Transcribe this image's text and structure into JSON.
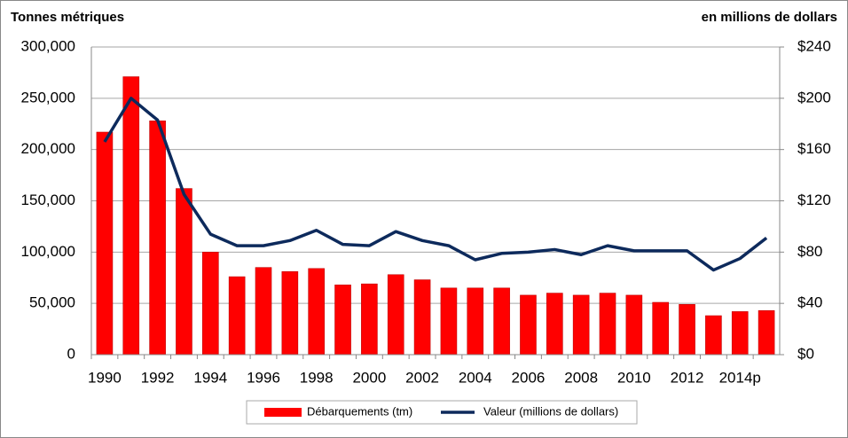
{
  "chart_data": {
    "type": "bar",
    "y_label": "Tonnes métriques",
    "y2_label": "en millions de dollars",
    "categories": [
      "1990",
      null,
      "1992",
      null,
      "1994",
      null,
      "1996",
      null,
      "1998",
      null,
      "2000",
      null,
      "2002",
      null,
      "2004",
      null,
      "2006",
      null,
      "2008",
      null,
      "2010",
      null,
      "2012",
      null,
      "2014p",
      null
    ],
    "series": [
      {
        "name": "Débarquements (tm)",
        "type": "bar",
        "color": "#ff0000",
        "values": [
          217000,
          271000,
          228000,
          162000,
          100000,
          76000,
          85000,
          81000,
          84000,
          68000,
          69000,
          78000,
          73000,
          65000,
          65000,
          65000,
          58000,
          60000,
          58000,
          60000,
          58000,
          51000,
          49000,
          38000,
          42000,
          43000
        ]
      },
      {
        "name": "Valeur (millions de dollars)",
        "type": "line",
        "axis": "y2",
        "color": "#0d2a5c",
        "values": [
          166,
          200,
          183,
          125,
          94,
          85,
          85,
          89,
          97,
          86,
          85,
          96,
          89,
          85,
          74,
          79,
          80,
          82,
          78,
          85,
          81,
          81,
          81,
          66,
          75,
          91
        ]
      }
    ],
    "ylim": [
      0,
      300000
    ],
    "yticks": [
      0,
      {
        "value": 50000,
        "label": "50,000"
      },
      {
        "value": 100000,
        "label": "100,000"
      },
      {
        "value": 150000,
        "label": "150,000"
      },
      {
        "value": 200000,
        "label": "200,000"
      },
      {
        "value": 250000,
        "label": "250,000"
      },
      {
        "value": 300000,
        "label": "300,000"
      }
    ],
    "y2lim": [
      0,
      240
    ],
    "y2ticks": [
      {
        "value": 0,
        "label": "$0"
      },
      {
        "value": 40,
        "label": "$40"
      },
      {
        "value": 80,
        "label": "$80"
      },
      {
        "value": 120,
        "label": "$120"
      },
      {
        "value": 160,
        "label": "$160"
      },
      {
        "value": 200,
        "label": "$200"
      },
      {
        "value": 240,
        "label": "$240"
      }
    ],
    "grid": true,
    "legend": "bottom"
  }
}
